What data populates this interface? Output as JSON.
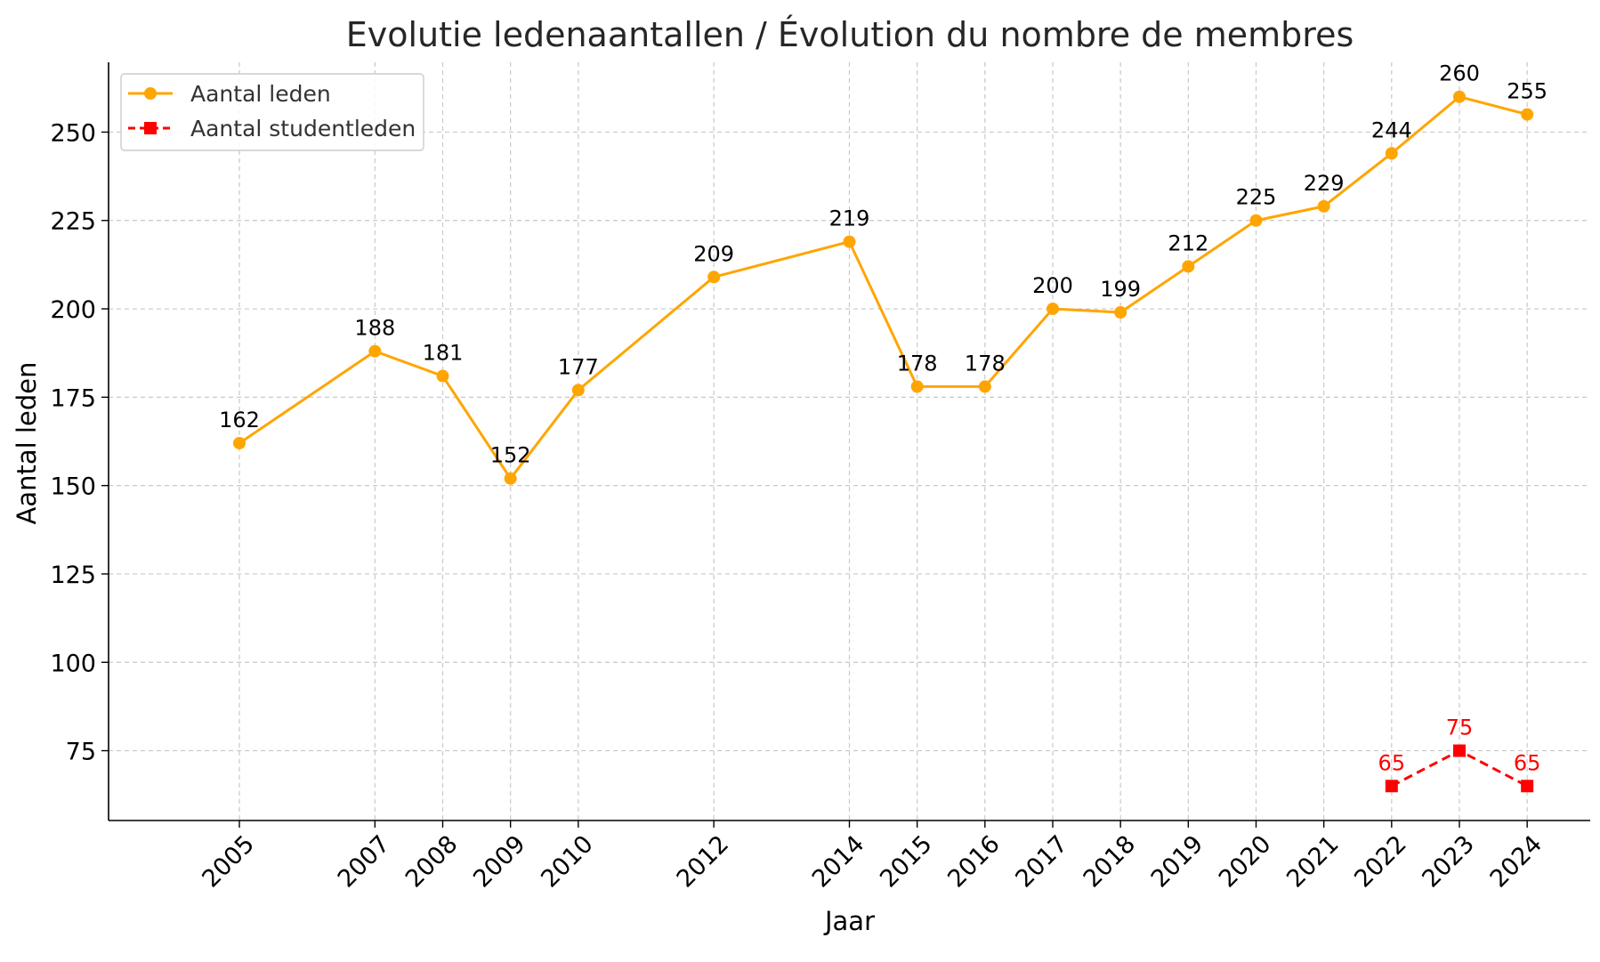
{
  "chart_data": {
    "type": "line",
    "title": "Evolutie ledenaantallen / Évolution du nombre de membres",
    "xlabel": "Jaar",
    "ylabel": "Aantal leden",
    "x_ticks": [
      2005,
      2007,
      2008,
      2009,
      2010,
      2012,
      2014,
      2015,
      2016,
      2017,
      2018,
      2019,
      2020,
      2021,
      2022,
      2023,
      2024
    ],
    "xlim": [
      2003.07,
      2024.93
    ],
    "ylim": [
      55.25,
      269.75
    ],
    "y_ticks": [
      75,
      100,
      125,
      150,
      175,
      200,
      225,
      250
    ],
    "grid": true,
    "legend_position": "top-left",
    "series": [
      {
        "name": "Aantal leden",
        "color": "#FFA500",
        "line_style": "solid",
        "marker": "circle",
        "label_color": "#000000",
        "x": [
          2005,
          2007,
          2008,
          2009,
          2010,
          2012,
          2014,
          2015,
          2016,
          2017,
          2018,
          2019,
          2020,
          2021,
          2022,
          2023,
          2024
        ],
        "values": [
          162,
          188,
          181,
          152,
          177,
          209,
          219,
          178,
          178,
          200,
          199,
          212,
          225,
          229,
          244,
          260,
          255
        ]
      },
      {
        "name": "Aantal studentleden",
        "color": "#FF0000",
        "line_style": "dashed",
        "marker": "square",
        "label_color": "#FF0000",
        "x": [
          2022,
          2023,
          2024
        ],
        "values": [
          65,
          75,
          65
        ]
      }
    ]
  }
}
